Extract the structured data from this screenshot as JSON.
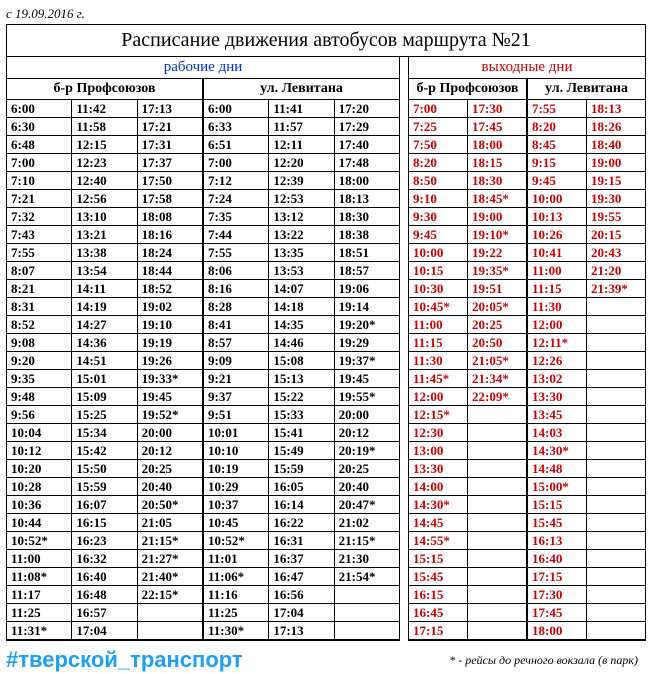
{
  "date_line": "с 19.09.2016 г.",
  "title": "Расписание движения автобусов маршрута №21",
  "workdays": {
    "label": "рабочие дни",
    "color": "#0033cc",
    "stops": [
      "б-р Профсоюзов",
      "ул. Левитана"
    ],
    "times": [
      [
        [
          "6:00",
          "6:30",
          "6:48",
          "7:00",
          "7:10",
          "7:21",
          "7:32",
          "7:43",
          "7:55",
          "8:07",
          "8:21",
          "8:31",
          "8:52",
          "9:08",
          "9:20",
          "9:35",
          "9:48",
          "9:56",
          "10:04",
          "10:12",
          "10:20",
          "10:28",
          "10:36",
          "10:44",
          "10:52*",
          "11:00",
          "11:08*",
          "11:17",
          "11:25",
          "11:31*"
        ],
        [
          "11:42",
          "11:58",
          "12:15",
          "12:23",
          "12:40",
          "12:56",
          "13:10",
          "13:21",
          "13:38",
          "13:54",
          "14:11",
          "14:19",
          "14:27",
          "14:36",
          "14:51",
          "15:01",
          "15:09",
          "15:25",
          "15:34",
          "15:42",
          "15:50",
          "15:59",
          "16:07",
          "16:15",
          "16:23",
          "16:32",
          "16:40",
          "16:48",
          "16:57",
          "17:04"
        ],
        [
          "17:13",
          "17:21",
          "17:31",
          "17:37",
          "17:50",
          "17:58",
          "18:08",
          "18:16",
          "18:24",
          "18:44",
          "18:52",
          "19:02",
          "19:10",
          "19:19",
          "19:26",
          "19:33*",
          "19:45",
          "19:52*",
          "20:00",
          "20:12",
          "20:25",
          "20:40",
          "20:50*",
          "21:05",
          "21:15*",
          "21:27*",
          "21:40*",
          "22:15*",
          "",
          ""
        ]
      ],
      [
        [
          "6:00",
          "6:33",
          "6:51",
          "7:00",
          "7:12",
          "7:24",
          "7:35",
          "7:44",
          "7:55",
          "8:06",
          "8:16",
          "8:28",
          "8:41",
          "8:57",
          "9:09",
          "9:21",
          "9:37",
          "9:51",
          "10:01",
          "10:10",
          "10:19",
          "10:29",
          "10:37",
          "10:45",
          "10:52*",
          "11:01",
          "11:06*",
          "11:16",
          "11:25",
          "11:30*"
        ],
        [
          "11:41",
          "11:57",
          "12:11",
          "12:20",
          "12:39",
          "12:53",
          "13:12",
          "13:22",
          "13:35",
          "13:53",
          "14:07",
          "14:18",
          "14:35",
          "14:46",
          "15:08",
          "15:13",
          "15:22",
          "15:33",
          "15:41",
          "15:49",
          "15:59",
          "16:05",
          "16:14",
          "16:22",
          "16:31",
          "16:37",
          "16:47",
          "16:56",
          "17:04",
          "17:13"
        ],
        [
          "17:20",
          "17:29",
          "17:40",
          "17:48",
          "18:00",
          "18:13",
          "18:30",
          "18:38",
          "18:51",
          "18:57",
          "19:06",
          "19:14",
          "19:20*",
          "19:29",
          "19:37*",
          "19:45",
          "19:55*",
          "20:00",
          "20:12",
          "20:19*",
          "20:25",
          "20:40",
          "20:47*",
          "21:02",
          "21:15*",
          "21:30",
          "21:54*",
          "",
          "",
          ""
        ]
      ]
    ]
  },
  "weekends": {
    "label": "выходные дни",
    "color": "#cc0000",
    "stops": [
      "б-р Профсоюзов",
      "ул. Левитана"
    ],
    "times": [
      [
        [
          "7:00",
          "7:25",
          "7:50",
          "8:20",
          "8:50",
          "9:10",
          "9:30",
          "9:45",
          "10:00",
          "10:15",
          "10:30",
          "10:45*",
          "11:00",
          "11:15",
          "11:30",
          "11:45*",
          "12:00",
          "12:15*",
          "12:30",
          "13:00",
          "13:30",
          "14:00",
          "14:30*",
          "14:45",
          "14:55*",
          "15:15",
          "15:45",
          "16:15",
          "16:45",
          "17:15"
        ],
        [
          "17:30",
          "17:45",
          "18:00",
          "18:15",
          "18:30",
          "18:45*",
          "19:00",
          "19:10*",
          "19:22",
          "19:35*",
          "19:51",
          "20:05*",
          "20:25",
          "20:50",
          "21:05*",
          "21:34*",
          "22:09*",
          "",
          "",
          "",
          "",
          "",
          "",
          "",
          "",
          "",
          "",
          "",
          "",
          ""
        ]
      ],
      [
        [
          "7:55",
          "8:20",
          "8:45",
          "9:15",
          "9:45",
          "10:00",
          "10:13",
          "10:26",
          "10:41",
          "11:00",
          "11:15",
          "11:30",
          "12:00",
          "12:11*",
          "12:26",
          "13:02",
          "13:30",
          "13:45",
          "14:03",
          "14:30*",
          "14:48",
          "15:00*",
          "15:15",
          "15:45",
          "16:13",
          "16:40",
          "17:15",
          "17:30",
          "17:45",
          "18:00"
        ],
        [
          "18:13",
          "18:26",
          "18:40",
          "19:00",
          "19:15",
          "19:30",
          "19:55",
          "20:15",
          "20:43",
          "21:20",
          "21:39*",
          "",
          "",
          "",
          "",
          "",
          "",
          "",
          "",
          "",
          "",
          "",
          "",
          "",
          "",
          "",
          "",
          "",
          "",
          ""
        ]
      ]
    ]
  },
  "hashtag": "#тверской_транспорт",
  "footnote": "* - рейсы до речного вокзала (в парк)"
}
